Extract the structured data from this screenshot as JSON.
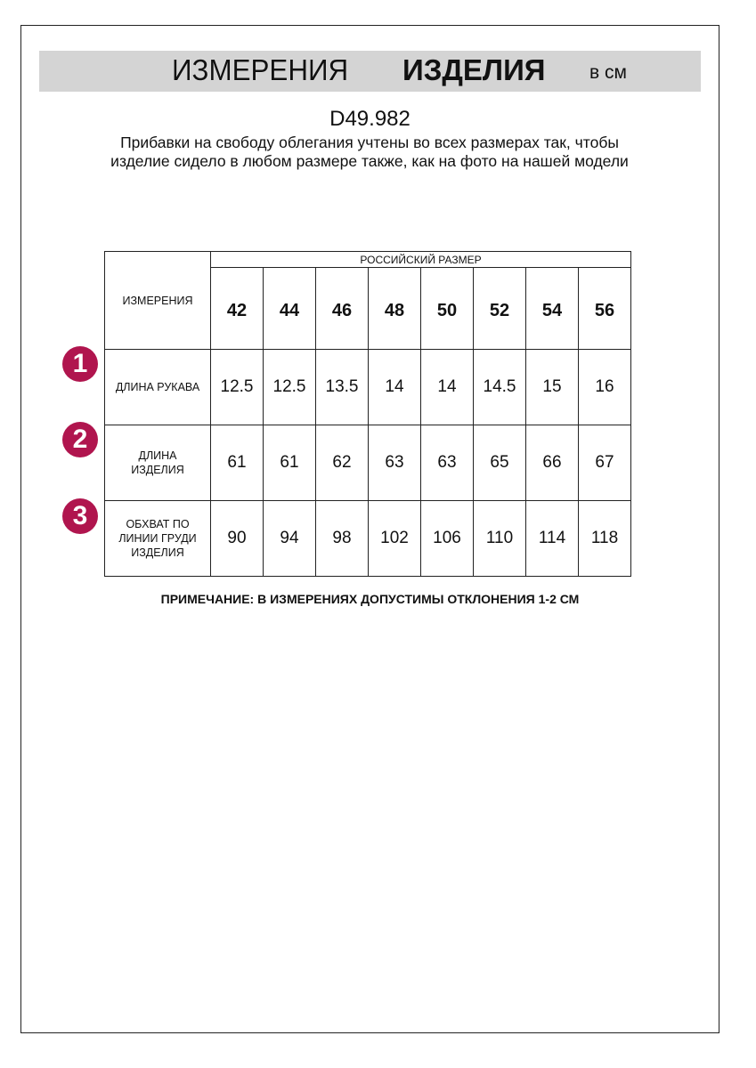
{
  "header": {
    "title_part1": "ИЗМЕРЕНИЯ",
    "title_part2": "ИЗДЕЛИЯ",
    "unit": "в см",
    "band_color": "#d4d4d4"
  },
  "article": "D49.982",
  "description": "Прибавки на свободу облегания учтены во всех размерах так, чтобы изделие сидело в любом размере также, как на фото на нашей модели",
  "table": {
    "corner_label": "ИЗМЕРЕНИЯ",
    "group_header": "РОССИЙСКИЙ РАЗМЕР",
    "sizes": [
      "42",
      "44",
      "46",
      "48",
      "50",
      "52",
      "54",
      "56"
    ],
    "rows": [
      {
        "number": "1",
        "label": "ДЛИНА РУКАВА",
        "values": [
          "12.5",
          "12.5",
          "13.5",
          "14",
          "14",
          "14.5",
          "15",
          "16"
        ]
      },
      {
        "number": "2",
        "label": "ДЛИНА ИЗДЕЛИЯ",
        "values": [
          "61",
          "61",
          "62",
          "63",
          "63",
          "65",
          "66",
          "67"
        ]
      },
      {
        "number": "3",
        "label": "ОБХВАТ ПО ЛИНИИ ГРУДИ ИЗДЕЛИЯ",
        "values": [
          "90",
          "94",
          "98",
          "102",
          "106",
          "110",
          "114",
          "118"
        ]
      }
    ],
    "badge_color": "#b0154e"
  },
  "note": "ПРИМЕЧАНИЕ: В ИЗМЕРЕНИЯХ ДОПУСТИМЫ ОТКЛОНЕНИЯ 1-2 СМ"
}
